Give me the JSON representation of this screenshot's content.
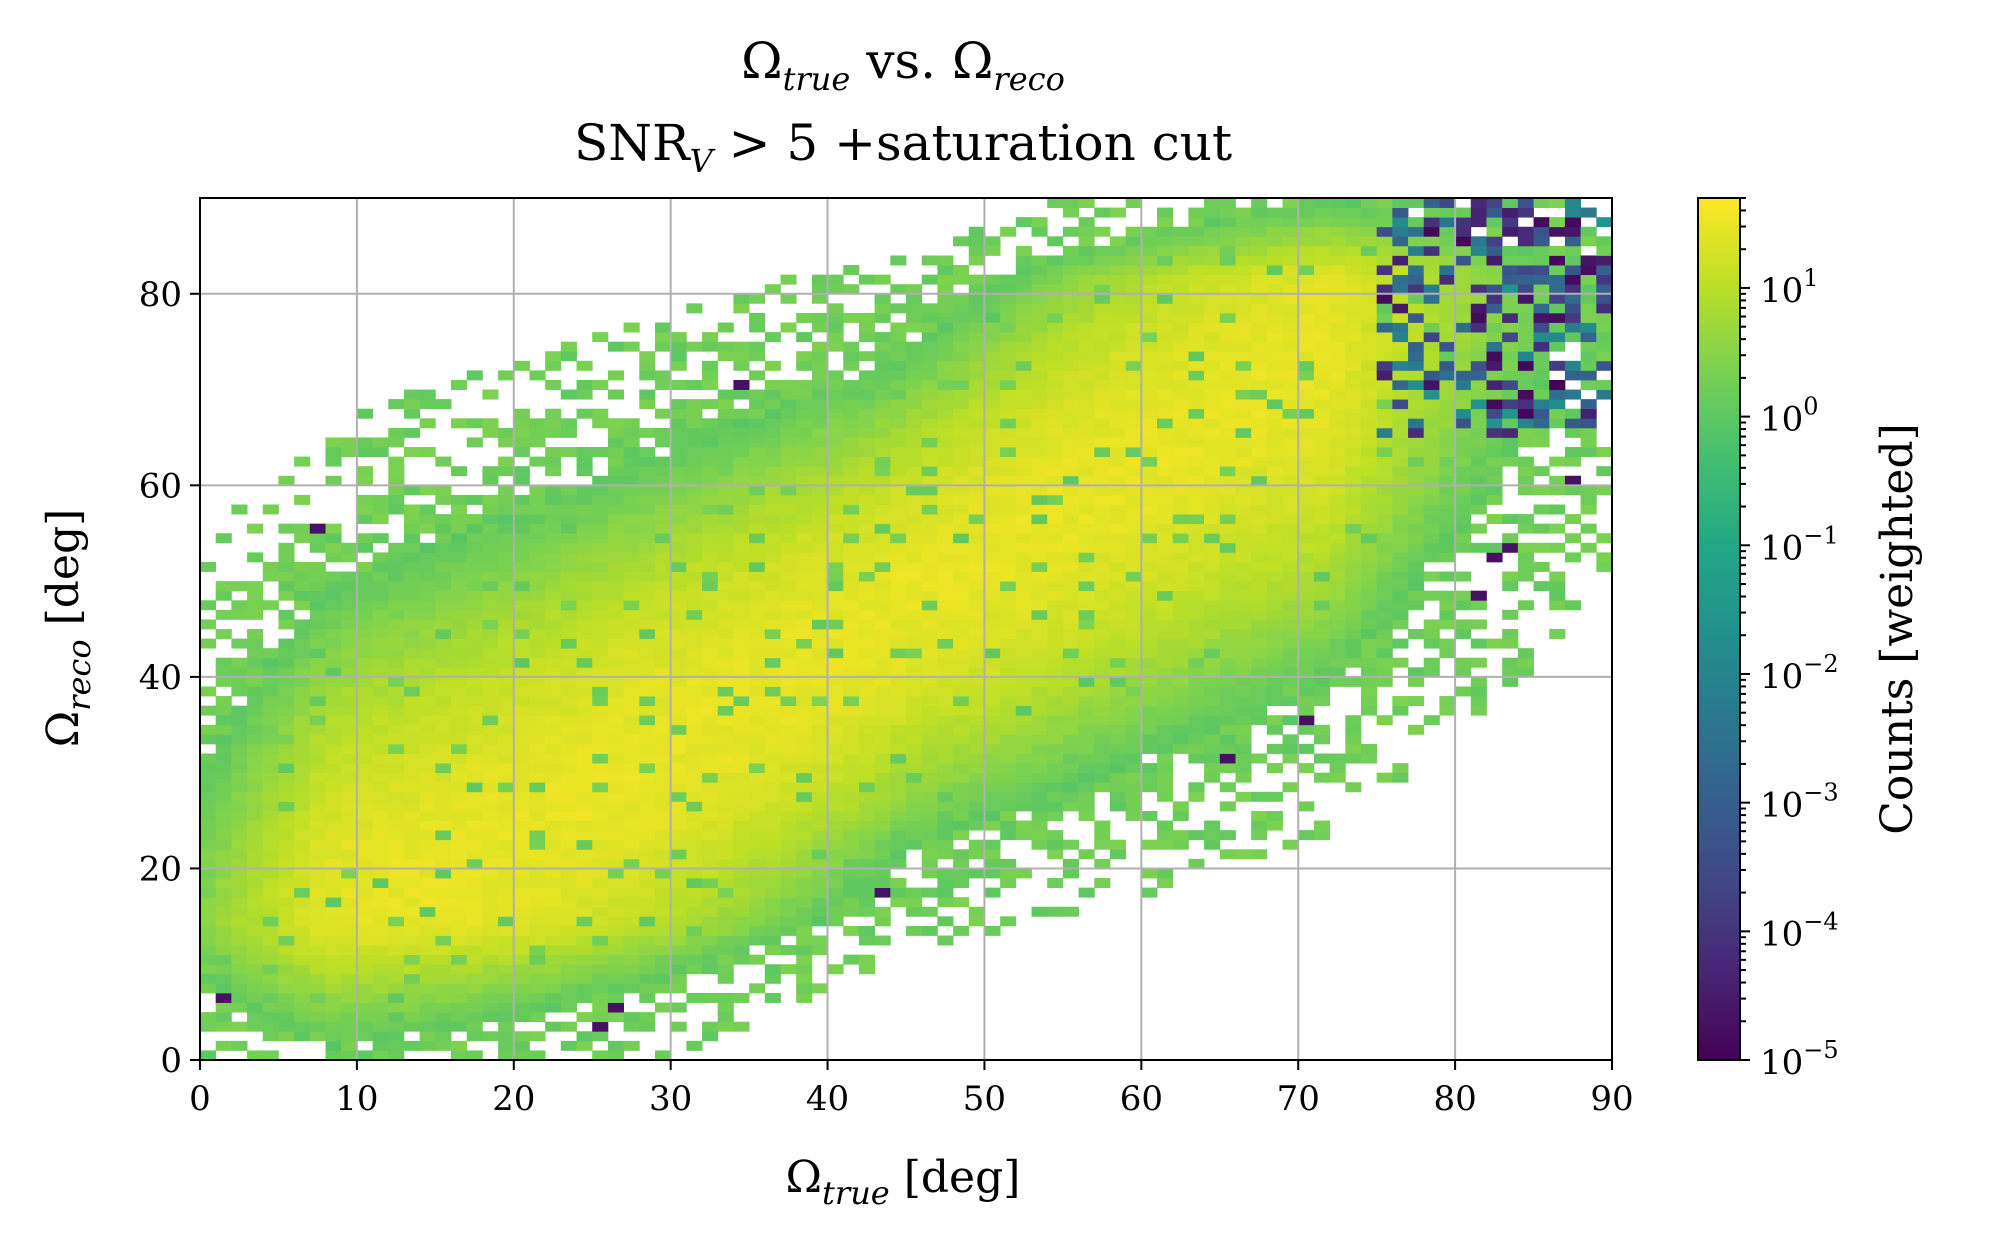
{
  "chart_data": {
    "type": "heatmap",
    "title": "Ωtrue vs. Ωreco",
    "title_parts": {
      "sym": "Ω",
      "sub_a": "true",
      "mid": " vs. ",
      "sub_b": "reco"
    },
    "subtitle": "SNRV > 5 +saturation cut",
    "subtitle_parts": {
      "a": "SNR",
      "sub": "V",
      "b": " > 5 +saturation cut"
    },
    "xlabel": "Ωtrue [deg]",
    "xlabel_parts": {
      "sym": "Ω",
      "sub": "true",
      "rest": " [deg]"
    },
    "ylabel": "Ωreco [deg]",
    "ylabel_parts": {
      "sym": "Ω",
      "sub": "reco",
      "rest": " [deg]"
    },
    "colorbar_label": "Counts [weighted]",
    "colormap": "viridis",
    "color_scale": "log",
    "grid": true,
    "xlim": [
      0,
      90
    ],
    "ylim": [
      0,
      90
    ],
    "x_ticks": [
      "0",
      "10",
      "20",
      "30",
      "40",
      "50",
      "60",
      "70",
      "80",
      "90"
    ],
    "y_ticks": [
      "0",
      "20",
      "40",
      "60",
      "80"
    ],
    "colorbar_range": [
      1e-05,
      50
    ],
    "colorbar_ticks": [
      {
        "base": "10",
        "exp": "1",
        "value": 10
      },
      {
        "base": "10",
        "exp": "0",
        "value": 1
      },
      {
        "base": "10",
        "exp": "−1",
        "value": 0.1
      },
      {
        "base": "10",
        "exp": "−2",
        "value": 0.01
      },
      {
        "base": "10",
        "exp": "−3",
        "value": 0.001
      },
      {
        "base": "10",
        "exp": "−4",
        "value": 0.0001
      },
      {
        "base": "10",
        "exp": "−5",
        "value": 1e-05
      }
    ],
    "bins_per_axis": 90,
    "density_ridge": {
      "from": [
        30,
        33
      ],
      "to": [
        70,
        72
      ],
      "peak_count": 30
    },
    "low_weight_region": {
      "x": [
        75,
        90
      ],
      "y": [
        65,
        90
      ]
    }
  }
}
